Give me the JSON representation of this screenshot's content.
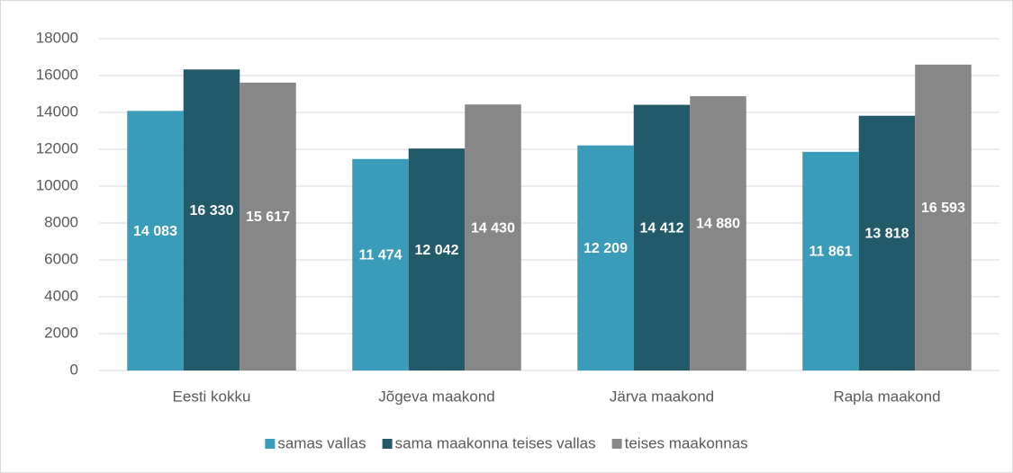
{
  "chart_data": {
    "type": "bar",
    "categories": [
      "Eesti kokku",
      "Jõgeva maakond",
      "Järva maakond",
      "Rapla maakond"
    ],
    "series": [
      {
        "name": "samas vallas",
        "color": "#3a9cb8",
        "values": [
          14083,
          11474,
          12209,
          11861
        ],
        "value_labels": [
          "14 083",
          "11 474",
          "12 209",
          "11 861"
        ]
      },
      {
        "name": "sama maakonna teises vallas",
        "color": "#225a6a",
        "values": [
          16330,
          12042,
          14412,
          13818
        ],
        "value_labels": [
          "16 330",
          "12 042",
          "14 412",
          "13 818"
        ]
      },
      {
        "name": "teises maakonnas",
        "color": "#878787",
        "values": [
          15617,
          14430,
          14880,
          16593
        ],
        "value_labels": [
          "15 617",
          "14 430",
          "14 880",
          "16 593"
        ]
      }
    ],
    "ylim": [
      0,
      18000
    ],
    "yticks": [
      0,
      2000,
      4000,
      6000,
      8000,
      10000,
      12000,
      14000,
      16000,
      18000
    ],
    "grid": true,
    "legend": "bottom"
  }
}
